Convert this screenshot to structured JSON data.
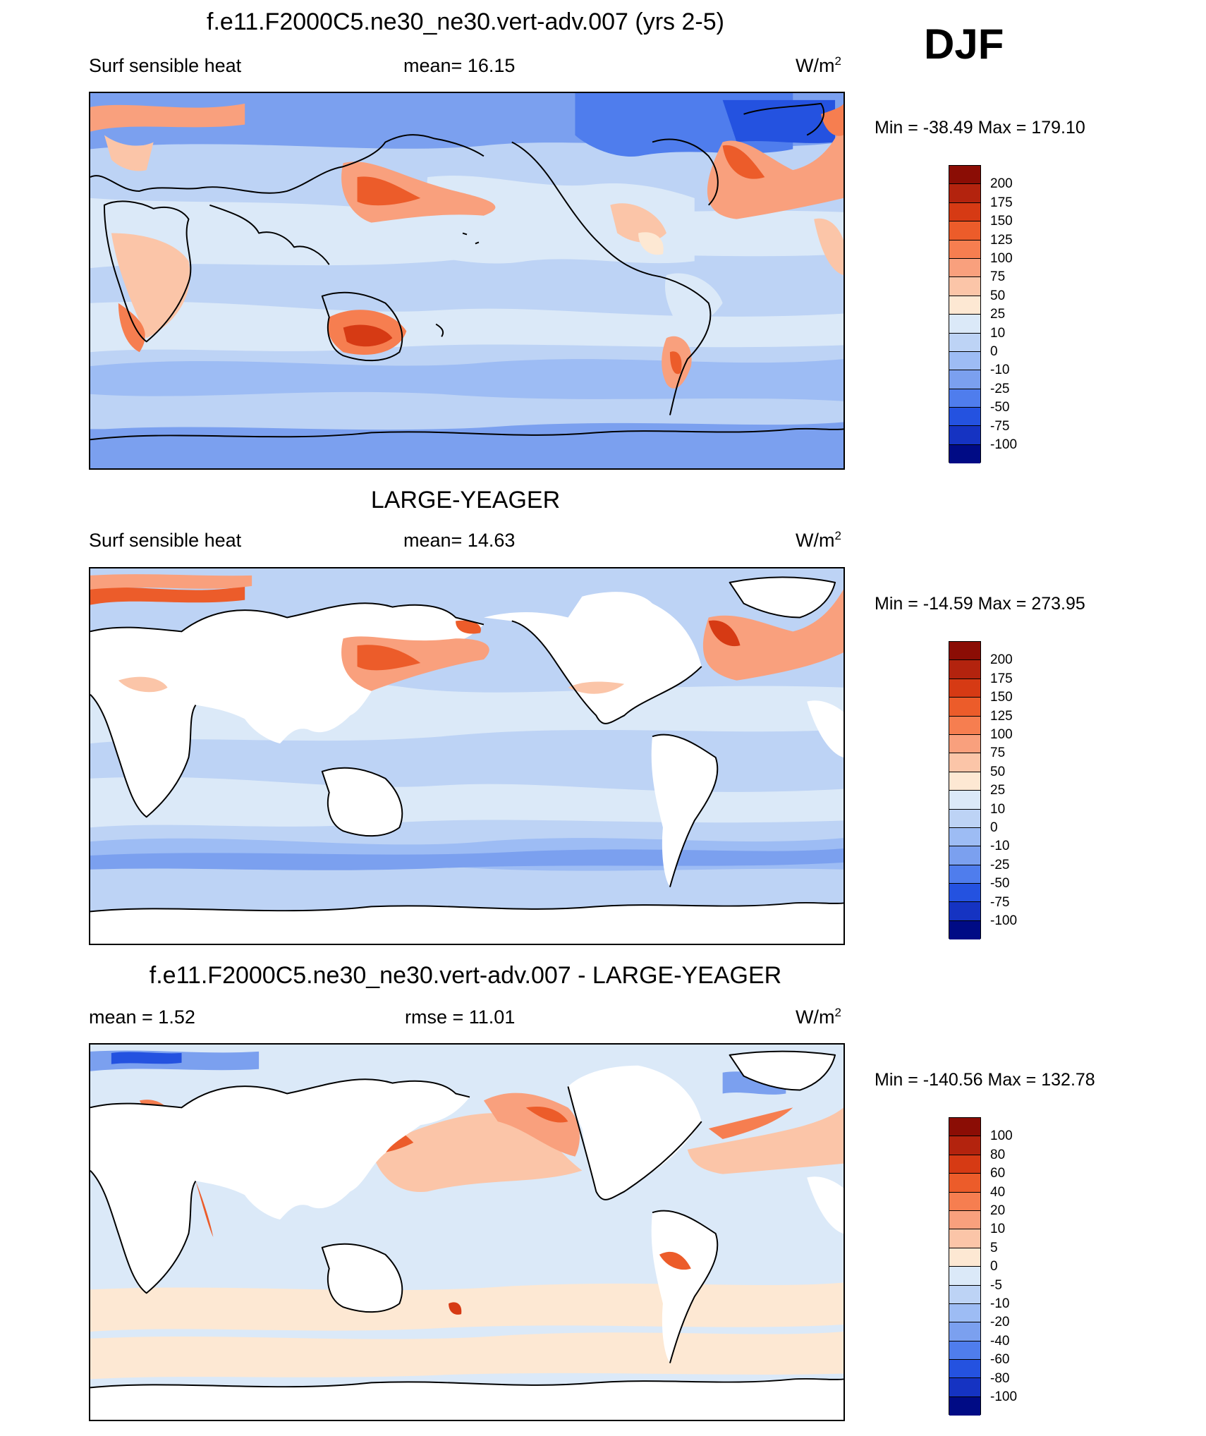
{
  "season": "DJF",
  "panels": [
    {
      "title": "f.e11.F2000C5.ne30_ne30.vert-adv.007 (yrs 2-5)",
      "left_label": "Surf sensible heat",
      "center_label": "mean=  16.15",
      "units": "W/m",
      "units_sup": "2",
      "minmax": "Min = -38.49 Max = 179.10",
      "legend": {
        "labels": [
          "200",
          "175",
          "150",
          "125",
          "100",
          "75",
          "50",
          "25",
          "10",
          "0",
          "-10",
          "-25",
          "-50",
          "-75",
          "-100"
        ],
        "colors": [
          "#8b0d05",
          "#b3230e",
          "#d63a14",
          "#ec5c2a",
          "#f67e50",
          "#f9a07d",
          "#fbc5a8",
          "#fde8d3",
          "#dbe9f8",
          "#bdd3f5",
          "#9dbcf4",
          "#7ba0ef",
          "#4f7ded",
          "#2452e0",
          "#1533c2",
          "#000b85"
        ],
        "max": 200,
        "min": -100
      }
    },
    {
      "title": "LARGE-YEAGER",
      "left_label": "Surf sensible heat",
      "center_label": "mean=  14.63",
      "units": "W/m",
      "units_sup": "2",
      "minmax": "Min = -14.59 Max = 273.95",
      "legend": {
        "labels": [
          "200",
          "175",
          "150",
          "125",
          "100",
          "75",
          "50",
          "25",
          "10",
          "0",
          "-10",
          "-25",
          "-50",
          "-75",
          "-100"
        ],
        "colors": [
          "#8b0d05",
          "#b3230e",
          "#d63a14",
          "#ec5c2a",
          "#f67e50",
          "#f9a07d",
          "#fbc5a8",
          "#fde8d3",
          "#dbe9f8",
          "#bdd3f5",
          "#9dbcf4",
          "#7ba0ef",
          "#4f7ded",
          "#2452e0",
          "#1533c2",
          "#000b85"
        ],
        "max": 200,
        "min": -100
      }
    },
    {
      "title": "f.e11.F2000C5.ne30_ne30.vert-adv.007 - LARGE-YEAGER",
      "left_label": "mean =   1.52",
      "center_label": "rmse =  11.01",
      "units": "W/m",
      "units_sup": "2",
      "minmax": "Min = -140.56 Max = 132.78",
      "legend": {
        "labels": [
          "100",
          "80",
          "60",
          "40",
          "20",
          "10",
          "5",
          "0",
          "-5",
          "-10",
          "-20",
          "-40",
          "-60",
          "-80",
          "-100"
        ],
        "colors": [
          "#8b0d05",
          "#b3230e",
          "#d63a14",
          "#ec5c2a",
          "#f67e50",
          "#f9a07d",
          "#fbc5a8",
          "#fde8d3",
          "#dbe9f8",
          "#bdd3f5",
          "#9dbcf4",
          "#7ba0ef",
          "#4f7ded",
          "#2452e0",
          "#1533c2",
          "#000b85"
        ],
        "max": 100,
        "min": -100
      }
    }
  ]
}
